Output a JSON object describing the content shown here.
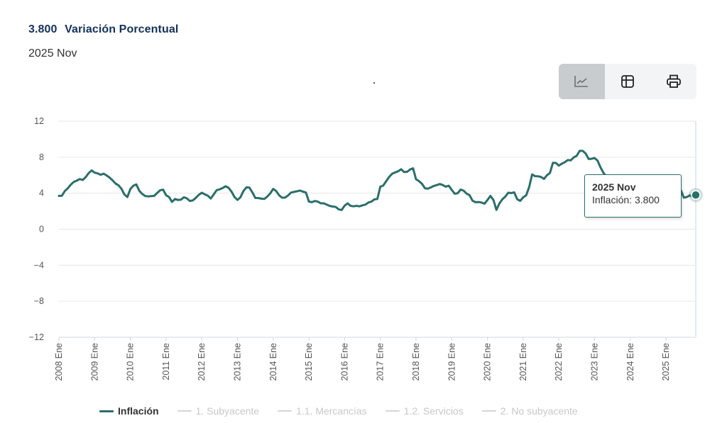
{
  "header": {
    "series_code": "3.800",
    "series_title": "Variación Porcentual",
    "period": "2025 Nov"
  },
  "toolbar": {
    "buttons": [
      {
        "icon": "line-chart-icon",
        "active": true
      },
      {
        "icon": "table-icon",
        "active": false
      },
      {
        "icon": "printer-icon",
        "active": false
      }
    ]
  },
  "tooltip": {
    "period": "2025 Nov",
    "label": "Inflación:",
    "value": "3.800"
  },
  "legend": [
    {
      "label": "Inflación",
      "active": true
    },
    {
      "label": "1. Subyacente",
      "active": false
    },
    {
      "label": "1.1. Mercancías",
      "active": false
    },
    {
      "label": "1.2. Servicios",
      "active": false
    },
    {
      "label": "2. No subyacente",
      "active": false
    }
  ],
  "colors": {
    "series": "#2b6e6a",
    "grid": "#e6e6e6",
    "axis_label": "#555555",
    "title": "#13325b"
  },
  "chart_data": {
    "type": "line",
    "title": "",
    "xlabel": "",
    "ylabel": "",
    "ylim": [
      -12,
      12
    ],
    "yticks": [
      12,
      8,
      4,
      0,
      -4,
      -8,
      -12
    ],
    "ytick_labels": [
      "12",
      "8",
      "4",
      "0",
      "−4",
      "−8",
      "−12"
    ],
    "xlim": [
      2008.0,
      2025.8333
    ],
    "xtick_labels": [
      "2008 Ene",
      "2009 Ene",
      "2010 Ene",
      "2011 Ene",
      "2012 Ene",
      "2013 Ene",
      "2014 Ene",
      "2015 Ene",
      "2016 Ene",
      "2017 Ene",
      "2018 Ene",
      "2019 Ene",
      "2020 Ene",
      "2021 Ene",
      "2022 Ene",
      "2023 Ene",
      "2024 Ene",
      "2025 Ene"
    ],
    "grid": true,
    "series": [
      {
        "name": "Inflación",
        "x": [
          2008.0,
          2008.083,
          2008.167,
          2008.25,
          2008.333,
          2008.417,
          2008.5,
          2008.583,
          2008.667,
          2008.75,
          2008.833,
          2008.917,
          2009.0,
          2009.083,
          2009.167,
          2009.25,
          2009.333,
          2009.417,
          2009.5,
          2009.583,
          2009.667,
          2009.75,
          2009.833,
          2009.917,
          2010.0,
          2010.083,
          2010.167,
          2010.25,
          2010.333,
          2010.417,
          2010.5,
          2010.583,
          2010.667,
          2010.75,
          2010.833,
          2010.917,
          2011.0,
          2011.083,
          2011.167,
          2011.25,
          2011.333,
          2011.417,
          2011.5,
          2011.583,
          2011.667,
          2011.75,
          2011.833,
          2011.917,
          2012.0,
          2012.083,
          2012.167,
          2012.25,
          2012.333,
          2012.417,
          2012.5,
          2012.583,
          2012.667,
          2012.75,
          2012.833,
          2012.917,
          2013.0,
          2013.083,
          2013.167,
          2013.25,
          2013.333,
          2013.417,
          2013.5,
          2013.583,
          2013.667,
          2013.75,
          2013.833,
          2013.917,
          2014.0,
          2014.083,
          2014.167,
          2014.25,
          2014.333,
          2014.417,
          2014.5,
          2014.583,
          2014.667,
          2014.75,
          2014.833,
          2014.917,
          2015.0,
          2015.083,
          2015.167,
          2015.25,
          2015.333,
          2015.417,
          2015.5,
          2015.583,
          2015.667,
          2015.75,
          2015.833,
          2015.917,
          2016.0,
          2016.083,
          2016.167,
          2016.25,
          2016.333,
          2016.417,
          2016.5,
          2016.583,
          2016.667,
          2016.75,
          2016.833,
          2016.917,
          2017.0,
          2017.083,
          2017.167,
          2017.25,
          2017.333,
          2017.417,
          2017.5,
          2017.583,
          2017.667,
          2017.75,
          2017.833,
          2017.917,
          2018.0,
          2018.083,
          2018.167,
          2018.25,
          2018.333,
          2018.417,
          2018.5,
          2018.583,
          2018.667,
          2018.75,
          2018.833,
          2018.917,
          2019.0,
          2019.083,
          2019.167,
          2019.25,
          2019.333,
          2019.417,
          2019.5,
          2019.583,
          2019.667,
          2019.75,
          2019.833,
          2019.917,
          2020.0,
          2020.083,
          2020.167,
          2020.25,
          2020.333,
          2020.417,
          2020.5,
          2020.583,
          2020.667,
          2020.75,
          2020.833,
          2020.917,
          2021.0,
          2021.083,
          2021.167,
          2021.25,
          2021.333,
          2021.417,
          2021.5,
          2021.583,
          2021.667,
          2021.75,
          2021.833,
          2021.917,
          2022.0,
          2022.083,
          2022.167,
          2022.25,
          2022.333,
          2022.417,
          2022.5,
          2022.583,
          2022.667,
          2022.75,
          2022.833,
          2022.917,
          2023.0,
          2023.083,
          2023.167,
          2023.25,
          2023.333,
          2023.417,
          2023.5,
          2023.583,
          2023.667,
          2023.75,
          2023.833,
          2023.917,
          2024.0,
          2024.083,
          2024.167,
          2024.25,
          2024.333,
          2024.417,
          2024.5,
          2024.583,
          2024.667,
          2024.75,
          2024.833,
          2024.917,
          2025.0,
          2025.083,
          2025.167,
          2025.25,
          2025.333,
          2025.417,
          2025.5,
          2025.583,
          2025.667,
          2025.75,
          2025.833
        ],
        "y": [
          3.7,
          3.72,
          4.25,
          4.55,
          4.95,
          5.26,
          5.39,
          5.57,
          5.47,
          5.78,
          6.23,
          6.53,
          6.28,
          6.2,
          6.04,
          6.17,
          5.98,
          5.74,
          5.44,
          5.08,
          4.89,
          4.5,
          3.86,
          3.57,
          4.46,
          4.83,
          4.97,
          4.27,
          3.92,
          3.69,
          3.64,
          3.68,
          3.7,
          4.02,
          4.32,
          4.4,
          3.78,
          3.57,
          3.04,
          3.36,
          3.25,
          3.28,
          3.55,
          3.42,
          3.14,
          3.2,
          3.48,
          3.82,
          4.05,
          3.87,
          3.73,
          3.41,
          3.85,
          4.34,
          4.42,
          4.57,
          4.77,
          4.6,
          4.18,
          3.57,
          3.25,
          3.55,
          4.25,
          4.65,
          4.63,
          4.09,
          3.47,
          3.46,
          3.39,
          3.36,
          3.62,
          3.97,
          4.48,
          4.23,
          3.76,
          3.5,
          3.51,
          3.75,
          4.07,
          4.15,
          4.22,
          4.3,
          4.17,
          4.08,
          3.07,
          3.0,
          3.14,
          3.06,
          2.88,
          2.87,
          2.74,
          2.59,
          2.52,
          2.48,
          2.21,
          2.13,
          2.61,
          2.87,
          2.6,
          2.54,
          2.6,
          2.54,
          2.65,
          2.73,
          2.97,
          3.06,
          3.31,
          3.36,
          4.72,
          4.86,
          5.35,
          5.82,
          6.16,
          6.31,
          6.44,
          6.66,
          6.35,
          6.37,
          6.63,
          6.77,
          5.55,
          5.34,
          5.04,
          4.55,
          4.51,
          4.65,
          4.81,
          4.9,
          5.02,
          4.9,
          4.72,
          4.83,
          4.37,
          3.94,
          4.0,
          4.41,
          4.28,
          3.95,
          3.78,
          3.16,
          3.0,
          3.02,
          2.97,
          2.83,
          3.24,
          3.7,
          3.25,
          2.15,
          2.84,
          3.33,
          3.62,
          4.05,
          4.01,
          4.09,
          3.33,
          3.15,
          3.54,
          3.76,
          4.67,
          6.08,
          5.89,
          5.88,
          5.81,
          5.59,
          6.0,
          6.24,
          7.37,
          7.36,
          7.07,
          7.28,
          7.45,
          7.68,
          7.65,
          7.99,
          8.15,
          8.7,
          8.7,
          8.41,
          7.8,
          7.82,
          7.91,
          7.62,
          6.85,
          6.25,
          5.84,
          5.06,
          4.79,
          4.64,
          4.45,
          4.26,
          4.32,
          4.66,
          4.88,
          4.4,
          4.42,
          4.65,
          4.69,
          4.98,
          5.57,
          4.99,
          4.58,
          4.76,
          4.55,
          4.21,
          3.59,
          3.77,
          3.8,
          3.93,
          4.42,
          4.32,
          3.51,
          3.57,
          3.76,
          3.57,
          3.8
        ]
      }
    ]
  }
}
